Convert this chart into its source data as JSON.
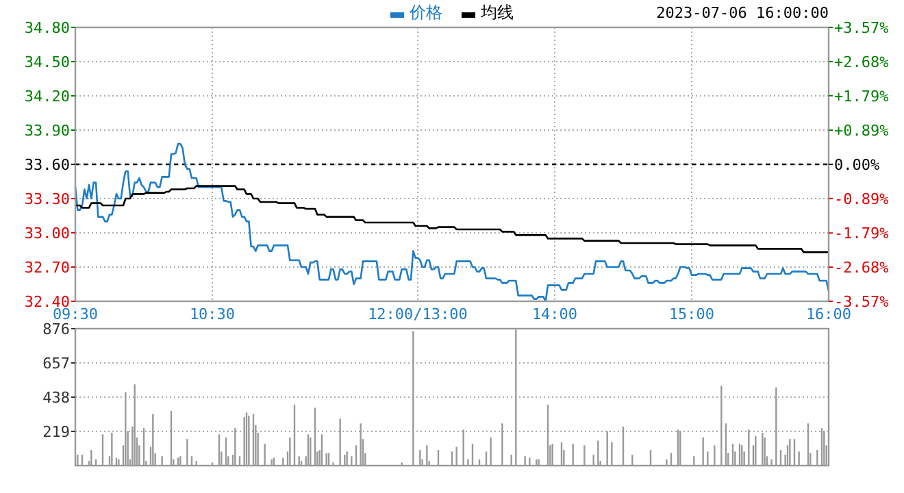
{
  "chart_data": [
    {
      "type": "line",
      "legend": "top",
      "grid": true,
      "annotations": [
        "2023-07-06 16:00:00"
      ],
      "categories": [
        "09:30",
        null,
        null,
        null,
        null,
        null,
        null,
        null,
        null,
        null,
        null,
        null,
        null,
        null,
        null,
        null,
        null,
        null,
        null,
        null,
        null,
        null,
        null,
        null,
        null,
        null,
        null,
        null,
        null,
        null,
        null,
        null,
        null,
        null,
        null,
        null,
        null,
        null,
        null,
        null,
        null,
        null,
        null,
        null,
        null,
        null,
        null,
        null,
        null,
        null,
        null,
        null,
        null,
        null,
        null,
        null,
        null,
        null,
        null,
        null,
        "10:30",
        null,
        null,
        null,
        null,
        null,
        null,
        null,
        null,
        null,
        null,
        null,
        null,
        null,
        null,
        null,
        null,
        null,
        null,
        null,
        null,
        null,
        null,
        null,
        null,
        null,
        null,
        null,
        null,
        null,
        null,
        null,
        null,
        null,
        null,
        null,
        null,
        null,
        null,
        null,
        null,
        null,
        null,
        null,
        null,
        null,
        null,
        null,
        null,
        null,
        null,
        null,
        null,
        null,
        null,
        null,
        null,
        null,
        null,
        null,
        null,
        null,
        null,
        null,
        null,
        null,
        null,
        null,
        null,
        null,
        null,
        null,
        null,
        null,
        null,
        null,
        null,
        null,
        null,
        null,
        null,
        null,
        null,
        null,
        null,
        null,
        null,
        null,
        null,
        null,
        "12:00/13:00",
        null,
        null,
        null,
        null,
        null,
        null,
        null,
        null,
        null,
        null,
        null,
        null,
        null,
        null,
        null,
        null,
        null,
        null,
        null,
        null,
        null,
        null,
        null,
        null,
        null,
        null,
        null,
        null,
        null,
        null,
        null,
        null,
        null,
        null,
        null,
        null,
        null,
        null,
        null,
        null,
        null,
        null,
        null,
        null,
        null,
        null,
        null,
        null,
        null,
        null,
        null,
        null,
        null,
        null,
        null,
        null,
        null,
        null,
        null,
        "14:00",
        null,
        null,
        null,
        null,
        null,
        null,
        null,
        null,
        null,
        null,
        null,
        null,
        null,
        null,
        null,
        null,
        null,
        null,
        null,
        null,
        null,
        null,
        null,
        null,
        null,
        null,
        null,
        null,
        null,
        null,
        null,
        null,
        null,
        null,
        null,
        null,
        null,
        null,
        null,
        null,
        null,
        null,
        null,
        null,
        null,
        null,
        null,
        null,
        null,
        null,
        null,
        null,
        null,
        null,
        null,
        null,
        null,
        null,
        null,
        "15:00",
        null,
        null,
        null,
        null,
        null,
        null,
        null,
        null,
        null,
        null,
        null,
        null,
        null,
        null,
        null,
        null,
        null,
        null,
        null,
        null,
        null,
        null,
        null,
        null,
        null,
        null,
        null,
        null,
        null,
        null,
        null,
        null,
        null,
        null,
        null,
        null,
        null,
        null,
        null,
        null,
        null,
        null,
        null,
        null,
        null,
        null,
        null,
        null,
        null,
        null,
        null,
        null,
        null,
        null,
        null,
        null,
        null,
        null,
        null,
        "16:00"
      ],
      "ylim": [
        32.4,
        34.8
      ],
      "yticks": [
        {
          "value": 32.4,
          "label": "32.40"
        },
        {
          "value": 32.7,
          "label": "32.70"
        },
        {
          "value": 33.0,
          "label": "33.00"
        },
        {
          "value": 33.3,
          "label": "33.30"
        },
        {
          "value": 33.6,
          "label": "33.60"
        },
        {
          "value": 33.9,
          "label": "33.90"
        },
        {
          "value": 34.2,
          "label": "34.20"
        },
        {
          "value": 34.5,
          "label": "34.50"
        },
        {
          "value": 34.8,
          "label": "34.80"
        }
      ],
      "y2lim": [
        -3.57,
        3.57
      ],
      "y2ticks": [
        {
          "value": -3.57,
          "label": "-3.57%"
        },
        {
          "value": -2.68,
          "label": "-2.68%"
        },
        {
          "value": -1.79,
          "label": "-1.79%"
        },
        {
          "value": -0.89,
          "label": "-0.89%"
        },
        {
          "value": 0,
          "label": "0.00%"
        },
        {
          "value": 0.89,
          "label": "+0.89%"
        },
        {
          "value": 1.79,
          "label": "+1.79%"
        },
        {
          "value": 2.68,
          "label": "+2.68%"
        },
        {
          "value": 3.57,
          "label": "+3.57%"
        }
      ],
      "ref_lines": [
        {
          "axis": "y",
          "value": 33.6,
          "color": "#000000",
          "line_style": "dashed"
        }
      ],
      "series": [
        {
          "name": "价格",
          "color": "#1e7cc8",
          "values": [
            33.4,
            33.2,
            33.2,
            33.24,
            33.38,
            33.3,
            33.42,
            33.3,
            33.44,
            33.44,
            33.14,
            33.14,
            33.14,
            33.1,
            33.1,
            33.16,
            33.16,
            33.24,
            33.34,
            33.3,
            33.3,
            33.44,
            33.54,
            33.54,
            33.32,
            33.32,
            33.44,
            33.44,
            33.48,
            33.42,
            33.4,
            33.36,
            33.36,
            33.44,
            33.44,
            33.44,
            33.4,
            33.4,
            33.49,
            33.49,
            33.49,
            33.49,
            33.69,
            33.69,
            33.7,
            33.78,
            33.78,
            33.74,
            33.6,
            33.56,
            33.56,
            33.48,
            33.48,
            33.48,
            33.4,
            33.4,
            33.4,
            33.4,
            33.4,
            33.4,
            33.4,
            33.4,
            33.4,
            33.4,
            33.4,
            33.28,
            33.28,
            33.27,
            33.27,
            33.14,
            33.16,
            33.2,
            33.2,
            33.14,
            33.14,
            33.1,
            33.1,
            32.88,
            32.88,
            32.84,
            32.89,
            32.89,
            32.89,
            32.89,
            32.89,
            32.84,
            32.84,
            32.89,
            32.89,
            32.89,
            32.89,
            32.89,
            32.89,
            32.89,
            32.76,
            32.76,
            32.76,
            32.76,
            32.76,
            32.7,
            32.7,
            32.7,
            32.64,
            32.74,
            32.74,
            32.75,
            32.75,
            32.59,
            32.59,
            32.59,
            32.59,
            32.59,
            32.68,
            32.68,
            32.59,
            32.59,
            32.68,
            32.68,
            32.64,
            32.64,
            32.66,
            32.66,
            32.55,
            32.6,
            32.6,
            32.6,
            32.75,
            32.75,
            32.75,
            32.75,
            32.75,
            32.75,
            32.75,
            32.59,
            32.59,
            32.59,
            32.59,
            32.66,
            32.66,
            32.66,
            32.59,
            32.59,
            32.59,
            32.68,
            32.68,
            32.68,
            32.59,
            32.59,
            32.84,
            32.78,
            32.78,
            32.76,
            32.7,
            32.7,
            32.76,
            32.76,
            32.68,
            32.68,
            32.7,
            32.7,
            32.6,
            32.6,
            32.64,
            32.64,
            32.64,
            32.64,
            32.64,
            32.75,
            32.75,
            32.75,
            32.75,
            32.75,
            32.75,
            32.75,
            32.7,
            32.7,
            32.66,
            32.66,
            32.69,
            32.69,
            32.6,
            32.6,
            32.6,
            32.6,
            32.6,
            32.59,
            32.59,
            32.56,
            32.56,
            32.56,
            32.58,
            32.58,
            32.58,
            32.58,
            32.45,
            32.45,
            32.45,
            32.45,
            32.45,
            32.45,
            32.45,
            32.42,
            32.42,
            32.44,
            32.44,
            32.44,
            32.4,
            32.54,
            32.54,
            32.54,
            32.54,
            32.54,
            32.54,
            32.5,
            32.5,
            32.5,
            32.56,
            32.56,
            32.56,
            32.6,
            32.6,
            32.6,
            32.6,
            32.64,
            32.64,
            32.64,
            32.64,
            32.64,
            32.75,
            32.75,
            32.75,
            32.75,
            32.75,
            32.7,
            32.7,
            32.7,
            32.7,
            32.7,
            32.7,
            32.75,
            32.75,
            32.67,
            32.67,
            32.67,
            32.64,
            32.6,
            32.6,
            32.6,
            32.62,
            32.62,
            32.62,
            32.56,
            32.56,
            32.56,
            32.58,
            32.58,
            32.56,
            32.56,
            32.56,
            32.58,
            32.58,
            32.58,
            32.6,
            32.6,
            32.64,
            32.7,
            32.7,
            32.7,
            32.69,
            32.69,
            32.63,
            32.63,
            32.63,
            32.64,
            32.64,
            32.64,
            32.64,
            32.63,
            32.63,
            32.59,
            32.59,
            32.59,
            32.59,
            32.59,
            32.64,
            32.64,
            32.64,
            32.64,
            32.64,
            32.64,
            32.64,
            32.64,
            32.69,
            32.69,
            32.69,
            32.69,
            32.69,
            32.66,
            32.66,
            32.66,
            32.6,
            32.6,
            32.6,
            32.64,
            32.64,
            32.64,
            32.64,
            32.64,
            32.64,
            32.64,
            32.69,
            32.64,
            32.64,
            32.64,
            32.66,
            32.66,
            32.66,
            32.66,
            32.66,
            32.66,
            32.66,
            32.64,
            32.64,
            32.64,
            32.64,
            32.64,
            32.58,
            32.58,
            32.58,
            32.58,
            32.49
          ]
        },
        {
          "name": "均线",
          "color": "#000000",
          "values": [
            33.24,
            33.24,
            33.24,
            33.22,
            33.22,
            33.22,
            33.22,
            33.26,
            33.26,
            33.26,
            33.26,
            33.26,
            33.24,
            33.24,
            33.24,
            33.24,
            33.24,
            33.24,
            33.24,
            33.24,
            33.24,
            33.24,
            33.3,
            33.3,
            33.3,
            33.34,
            33.34,
            33.34,
            33.34,
            33.34,
            33.34,
            33.35,
            33.35,
            33.35,
            33.35,
            33.35,
            33.35,
            33.35,
            33.35,
            33.35,
            33.36,
            33.36,
            33.38,
            33.38,
            33.38,
            33.38,
            33.38,
            33.38,
            33.38,
            33.39,
            33.39,
            33.39,
            33.39,
            33.41,
            33.41,
            33.41,
            33.41,
            33.41,
            33.41,
            33.41,
            33.41,
            33.41,
            33.41,
            33.41,
            33.41,
            33.41,
            33.41,
            33.41,
            33.41,
            33.41,
            33.41,
            33.38,
            33.38,
            33.38,
            33.38,
            33.34,
            33.34,
            33.34,
            33.3,
            33.3,
            33.3,
            33.27,
            33.27,
            33.27,
            33.27,
            33.27,
            33.27,
            33.27,
            33.27,
            33.26,
            33.26,
            33.26,
            33.26,
            33.26,
            33.26,
            33.26,
            33.26,
            33.22,
            33.22,
            33.22,
            33.22,
            33.21,
            33.21,
            33.21,
            33.21,
            33.21,
            33.16,
            33.16,
            33.16,
            33.16,
            33.14,
            33.14,
            33.14,
            33.14,
            33.14,
            33.14,
            33.14,
            33.14,
            33.14,
            33.14,
            33.14,
            33.14,
            33.14,
            33.11,
            33.11,
            33.11,
            33.11,
            33.09,
            33.09,
            33.09,
            33.09,
            33.09,
            33.09,
            33.09,
            33.09,
            33.09,
            33.09,
            33.09,
            33.09,
            33.09,
            33.09,
            33.09,
            33.09,
            33.09,
            33.09,
            33.09,
            33.09,
            33.09,
            33.09,
            33.06,
            33.06,
            33.06,
            33.06,
            33.06,
            33.06,
            33.04,
            33.04,
            33.04,
            33.04,
            33.05,
            33.05,
            33.05,
            33.05,
            33.05,
            33.05,
            33.05,
            33.05,
            33.03,
            33.03,
            33.03,
            33.03,
            33.03,
            33.03,
            33.03,
            33.03,
            33.03,
            33.03,
            33.03,
            33.03,
            33.03,
            33.03,
            33.03,
            33.03,
            33.03,
            33.03,
            33.03,
            33.03,
            33.01,
            33.01,
            33.01,
            33.01,
            33.01,
            33.01,
            32.98,
            32.98,
            32.98,
            32.98,
            32.98,
            32.98,
            32.98,
            32.98,
            32.98,
            32.98,
            32.98,
            32.98,
            32.98,
            32.98,
            32.95,
            32.95,
            32.95,
            32.95,
            32.95,
            32.95,
            32.95,
            32.95,
            32.95,
            32.95,
            32.95,
            32.95,
            32.95,
            32.95,
            32.95,
            32.95,
            32.93,
            32.93,
            32.93,
            32.93,
            32.93,
            32.93,
            32.93,
            32.93,
            32.93,
            32.93,
            32.93,
            32.93,
            32.93,
            32.93,
            32.93,
            32.93,
            32.91,
            32.91,
            32.91,
            32.91,
            32.91,
            32.91,
            32.91,
            32.91,
            32.91,
            32.91,
            32.91,
            32.91,
            32.91,
            32.91,
            32.91,
            32.91,
            32.91,
            32.91,
            32.91,
            32.91,
            32.91,
            32.91,
            32.91,
            32.91,
            32.9,
            32.9,
            32.9,
            32.9,
            32.9,
            32.9,
            32.9,
            32.9,
            32.9,
            32.9,
            32.9,
            32.9,
            32.9,
            32.9,
            32.9,
            32.89,
            32.89,
            32.89,
            32.89,
            32.89,
            32.89,
            32.89,
            32.89,
            32.89,
            32.89,
            32.89,
            32.89,
            32.89,
            32.89,
            32.89,
            32.89,
            32.89,
            32.89,
            32.89,
            32.89,
            32.89,
            32.86,
            32.86,
            32.86,
            32.86,
            32.86,
            32.86,
            32.86,
            32.86,
            32.86,
            32.86,
            32.86,
            32.86,
            32.86,
            32.86,
            32.86,
            32.86,
            32.86,
            32.86,
            32.86,
            32.86,
            32.83,
            32.83,
            32.83,
            32.83,
            32.83,
            32.83,
            32.83,
            32.83,
            32.83,
            32.83,
            32.83,
            32.83
          ]
        }
      ]
    },
    {
      "type": "bar",
      "grid": "y",
      "tick_labels": "y",
      "categories": [
        null,
        null,
        null,
        null,
        null,
        null,
        null,
        null,
        null,
        null,
        null,
        null,
        null,
        null,
        null,
        null,
        null,
        null,
        null,
        null,
        null,
        null,
        null,
        null,
        null,
        null,
        null,
        null,
        null,
        null,
        null,
        null,
        null,
        null,
        null,
        null,
        null,
        null,
        null,
        null,
        null,
        null,
        null,
        null,
        null,
        null,
        null,
        null,
        null,
        null,
        null,
        null,
        null,
        null,
        null,
        null,
        null,
        null,
        null,
        null,
        null,
        null,
        null,
        null,
        null,
        null,
        null,
        null,
        null,
        null,
        null,
        null,
        null,
        null,
        null,
        null,
        null,
        null,
        null,
        null,
        null,
        null,
        null,
        null,
        null,
        null,
        null,
        null,
        null,
        null,
        null,
        null,
        null,
        null,
        null,
        null,
        null,
        null,
        null,
        null,
        null,
        null,
        null,
        null,
        null,
        null,
        null,
        null,
        null,
        null,
        null,
        null,
        null,
        null,
        null,
        null,
        null,
        null,
        null,
        null,
        null,
        null,
        null,
        null,
        null,
        null,
        null,
        null,
        null,
        null,
        null,
        null,
        null,
        null,
        null,
        null,
        null,
        null,
        null,
        null,
        null,
        null,
        null,
        null,
        null,
        null,
        null,
        null,
        null,
        null,
        null,
        null,
        null,
        null,
        null,
        null,
        null,
        null,
        null,
        null,
        null,
        null,
        null,
        null,
        null,
        null,
        null,
        null,
        null,
        null,
        null,
        null,
        null,
        null,
        null,
        null,
        null,
        null,
        null,
        null,
        null,
        null,
        null,
        null,
        null,
        null,
        null,
        null,
        null,
        null,
        null,
        null,
        null,
        null,
        null,
        null,
        null,
        null,
        null,
        null,
        null,
        null,
        null,
        null,
        null,
        null,
        null,
        null,
        null,
        null,
        null,
        null,
        null,
        null,
        null,
        null,
        null,
        null,
        null,
        null,
        null,
        null,
        null,
        null,
        null,
        null,
        null,
        null,
        null,
        null,
        null,
        null,
        null,
        null,
        null,
        null,
        null,
        null,
        null,
        null,
        null,
        null,
        null,
        null,
        null,
        null,
        null,
        null,
        null,
        null,
        null,
        null,
        null,
        null,
        null,
        null,
        null,
        null,
        null,
        null,
        null,
        null,
        null,
        null,
        null,
        null,
        null,
        null,
        null,
        null,
        null,
        null,
        null,
        null,
        null,
        null,
        null,
        null,
        null,
        null,
        null,
        null,
        null,
        null,
        null,
        null,
        null,
        null,
        null,
        null,
        null,
        null,
        null,
        null,
        null,
        null,
        null,
        null,
        null,
        null,
        null,
        null,
        null,
        null,
        null,
        null,
        null,
        null,
        null,
        null,
        null,
        null,
        null,
        null,
        null,
        null,
        null,
        null,
        null,
        null,
        null,
        null,
        null,
        null,
        null,
        null,
        null,
        null,
        null,
        null,
        null
      ],
      "ylim": [
        0,
        876
      ],
      "yticks": [
        219,
        438,
        657,
        876
      ],
      "series": [
        {
          "color": "#999999",
          "values": [
            null,
            70,
            null,
            70,
            null,
            null,
            30,
            100,
            null,
            40,
            null,
            null,
            200,
            null,
            null,
            60,
            210,
            null,
            50,
            40,
            null,
            130,
            470,
            220,
            40,
            250,
            520,
            180,
            130,
            null,
            240,
            30,
            null,
            120,
            330,
            80,
            null,
            null,
            60,
            null,
            null,
            null,
            350,
            40,
            null,
            50,
            60,
            null,
            null,
            170,
            null,
            60,
            null,
            30,
            null,
            null,
            null,
            null,
            null,
            null,
            20,
            null,
            null,
            200,
            90,
            null,
            180,
            60,
            null,
            70,
            240,
            null,
            60,
            null,
            310,
            340,
            320,
            null,
            330,
            260,
            210,
            null,
            null,
            140,
            null,
            null,
            40,
            50,
            null,
            null,
            null,
            50,
            null,
            90,
            180,
            null,
            390,
            null,
            60,
            30,
            null,
            60,
            200,
            180,
            null,
            370,
            90,
            100,
            200,
            null,
            80,
            80,
            null,
            20,
            null,
            null,
            300,
            null,
            70,
            90,
            null,
            60,
            null,
            130,
            null,
            270,
            170,
            80,
            null,
            null,
            null,
            null,
            null,
            null,
            null,
            null,
            null,
            null,
            null,
            null,
            null,
            null,
            null,
            20,
            null,
            null,
            null,
            null,
            860,
            null,
            null,
            100,
            40,
            null,
            130,
            30,
            null,
            null,
            null,
            100,
            null,
            null,
            null,
            null,
            null,
            90,
            null,
            120,
            null,
            null,
            230,
            null,
            40,
            null,
            140,
            null,
            null,
            40,
            null,
            null,
            90,
            null,
            180,
            null,
            null,
            null,
            null,
            270,
            null,
            null,
            null,
            70,
            null,
            870,
            null,
            null,
            null,
            60,
            null,
            50,
            null,
            null,
            40,
            40,
            null,
            null,
            null,
            390,
            130,
            140,
            null,
            null,
            null,
            150,
            100,
            null,
            null,
            null,
            140,
            null,
            null,
            null,
            null,
            130,
            null,
            null,
            null,
            70,
            null,
            160,
            30,
            null,
            null,
            220,
            null,
            150,
            null,
            null,
            null,
            null,
            250,
            null,
            null,
            null,
            70,
            null,
            null,
            null,
            null,
            null,
            null,
            null,
            100,
            null,
            null,
            null,
            null,
            null,
            null,
            40,
            null,
            80,
            null,
            null,
            230,
            220,
            null,
            null,
            null,
            null,
            null,
            60,
            null,
            null,
            null,
            180,
            null,
            90,
            null,
            null,
            130,
            null,
            null,
            510,
            null,
            270,
            80,
            null,
            140,
            90,
            null,
            140,
            130,
            90,
            null,
            230,
            null,
            130,
            190,
            null,
            null,
            210,
            180,
            60,
            null,
            40,
            null,
            500,
            null,
            100,
            null,
            70,
            130,
            170,
            null,
            170,
            null,
            90,
            null,
            null,
            null,
            270,
            80,
            null,
            null,
            100,
            null,
            240,
            220,
            130,
            null
          ]
        }
      ]
    }
  ]
}
